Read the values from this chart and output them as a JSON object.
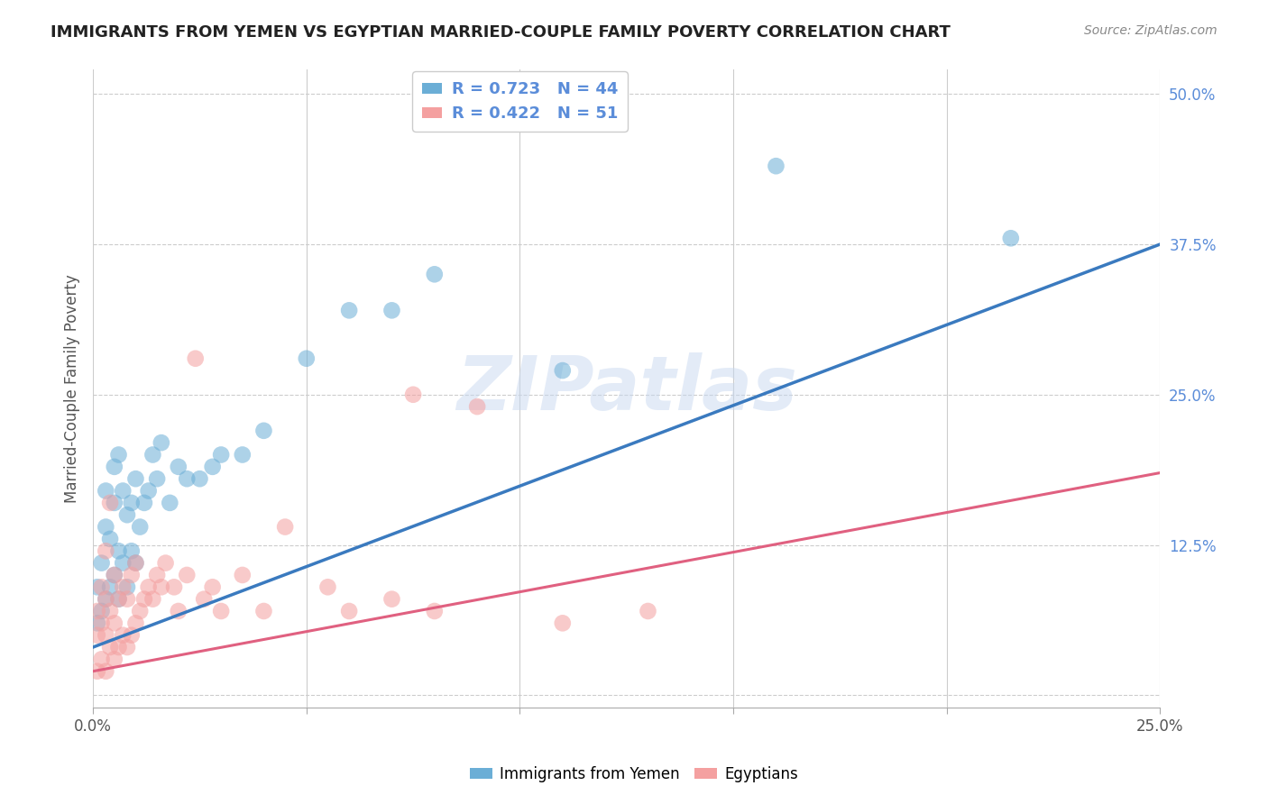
{
  "title": "IMMIGRANTS FROM YEMEN VS EGYPTIAN MARRIED-COUPLE FAMILY POVERTY CORRELATION CHART",
  "source": "Source: ZipAtlas.com",
  "ylabel": "Married-Couple Family Poverty",
  "xlim": [
    0.0,
    0.25
  ],
  "ylim": [
    -0.01,
    0.52
  ],
  "xticks": [
    0.0,
    0.05,
    0.1,
    0.15,
    0.2,
    0.25
  ],
  "xtick_labels_show": [
    "0.0%",
    "",
    "",
    "",
    "",
    "25.0%"
  ],
  "yticks": [
    0.0,
    0.125,
    0.25,
    0.375,
    0.5
  ],
  "ytick_labels": [
    "",
    "12.5%",
    "25.0%",
    "37.5%",
    "50.0%"
  ],
  "legend_R1": "R = 0.723",
  "legend_N1": "N = 44",
  "legend_R2": "R = 0.422",
  "legend_N2": "N = 51",
  "legend_label1": "Immigrants from Yemen",
  "legend_label2": "Egyptians",
  "color_blue": "#6baed6",
  "color_pink": "#f4a0a0",
  "color_line_blue": "#3a7abf",
  "color_line_pink": "#e06080",
  "watermark": "ZIPatlas",
  "blue_x": [
    0.001,
    0.001,
    0.002,
    0.002,
    0.003,
    0.003,
    0.003,
    0.004,
    0.004,
    0.005,
    0.005,
    0.005,
    0.006,
    0.006,
    0.006,
    0.007,
    0.007,
    0.008,
    0.008,
    0.009,
    0.009,
    0.01,
    0.01,
    0.011,
    0.012,
    0.013,
    0.014,
    0.015,
    0.016,
    0.018,
    0.02,
    0.022,
    0.025,
    0.028,
    0.03,
    0.035,
    0.04,
    0.05,
    0.06,
    0.07,
    0.08,
    0.11,
    0.16,
    0.215
  ],
  "blue_y": [
    0.06,
    0.09,
    0.07,
    0.11,
    0.08,
    0.14,
    0.17,
    0.09,
    0.13,
    0.1,
    0.16,
    0.19,
    0.08,
    0.12,
    0.2,
    0.11,
    0.17,
    0.09,
    0.15,
    0.12,
    0.16,
    0.11,
    0.18,
    0.14,
    0.16,
    0.17,
    0.2,
    0.18,
    0.21,
    0.16,
    0.19,
    0.18,
    0.18,
    0.19,
    0.2,
    0.2,
    0.22,
    0.28,
    0.32,
    0.32,
    0.35,
    0.27,
    0.44,
    0.38
  ],
  "pink_x": [
    0.001,
    0.001,
    0.001,
    0.002,
    0.002,
    0.002,
    0.003,
    0.003,
    0.003,
    0.003,
    0.004,
    0.004,
    0.004,
    0.005,
    0.005,
    0.005,
    0.006,
    0.006,
    0.007,
    0.007,
    0.008,
    0.008,
    0.009,
    0.009,
    0.01,
    0.01,
    0.011,
    0.012,
    0.013,
    0.014,
    0.015,
    0.016,
    0.017,
    0.019,
    0.02,
    0.022,
    0.024,
    0.026,
    0.028,
    0.03,
    0.035,
    0.04,
    0.045,
    0.055,
    0.06,
    0.07,
    0.075,
    0.08,
    0.09,
    0.11,
    0.13
  ],
  "pink_y": [
    0.02,
    0.05,
    0.07,
    0.03,
    0.06,
    0.09,
    0.02,
    0.05,
    0.08,
    0.12,
    0.04,
    0.07,
    0.16,
    0.03,
    0.06,
    0.1,
    0.04,
    0.08,
    0.05,
    0.09,
    0.04,
    0.08,
    0.05,
    0.1,
    0.06,
    0.11,
    0.07,
    0.08,
    0.09,
    0.08,
    0.1,
    0.09,
    0.11,
    0.09,
    0.07,
    0.1,
    0.28,
    0.08,
    0.09,
    0.07,
    0.1,
    0.07,
    0.14,
    0.09,
    0.07,
    0.08,
    0.25,
    0.07,
    0.24,
    0.06,
    0.07
  ],
  "background_color": "#ffffff",
  "grid_color": "#cccccc",
  "title_color": "#222222",
  "axis_label_color": "#555555",
  "tick_label_color": "#5b8dd9"
}
